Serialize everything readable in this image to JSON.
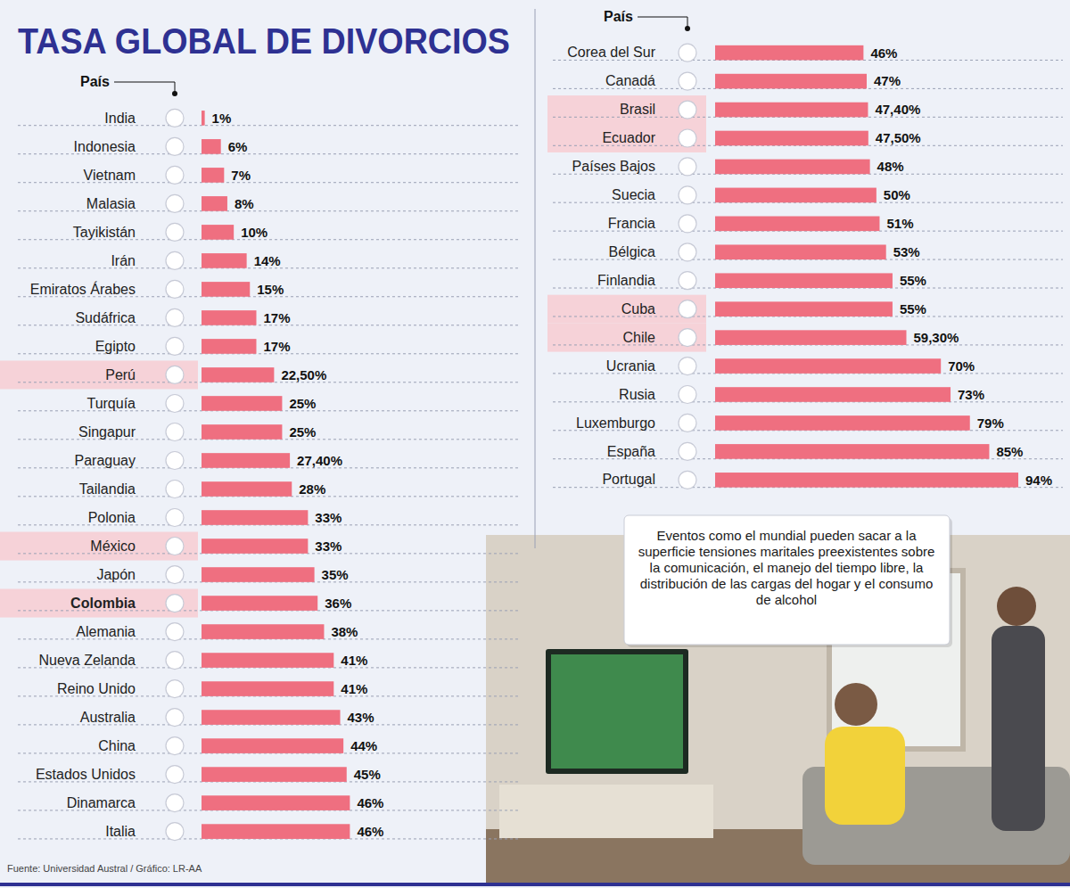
{
  "chart_data": {
    "type": "bar",
    "title": "TASA GLOBAL DE DIVORCIOS",
    "ylabel": "País",
    "orientation": "horizontal",
    "data_labels": true,
    "tick_labels": "y",
    "color": "#ef6f80",
    "categories": [
      "India",
      "Indonesia",
      "Vietnam",
      "Malasia",
      "Tayikistán",
      "Irán",
      "Emiratos Árabes",
      "Sudáfrica",
      "Egipto",
      "Perú",
      "Turquía",
      "Singapur",
      "Paraguay",
      "Tailandia",
      "Polonia",
      "México",
      "Japón",
      "Colombia",
      "Alemania",
      "Nueva Zelanda",
      "Reino Unido",
      "Australia",
      "China",
      "Estados Unidos",
      "Dinamarca",
      "Italia",
      "Corea del Sur",
      "Canadá",
      "Brasil",
      "Ecuador",
      "Países Bajos",
      "Suecia",
      "Francia",
      "Bélgica",
      "Finlandia",
      "Cuba",
      "Chile",
      "Ucrania",
      "Rusia",
      "Luxemburgo",
      "España",
      "Portugal"
    ],
    "values": [
      1,
      6,
      7,
      8,
      10,
      14,
      15,
      17,
      17,
      22.5,
      25,
      25,
      27.4,
      28,
      33,
      33,
      35,
      36,
      38,
      41,
      41,
      43,
      44,
      45,
      46,
      46,
      46,
      47,
      47.4,
      47.5,
      48,
      50,
      51,
      53,
      55,
      55,
      59.3,
      70,
      73,
      79,
      85,
      94
    ],
    "value_labels": [
      "1%",
      "6%",
      "7%",
      "8%",
      "10%",
      "14%",
      "15%",
      "17%",
      "17%",
      "22,50%",
      "25%",
      "25%",
      "27,40%",
      "28%",
      "33%",
      "33%",
      "35%",
      "36%",
      "38%",
      "41%",
      "41%",
      "43%",
      "44%",
      "45%",
      "46%",
      "46%",
      "46%",
      "47%",
      "47,40%",
      "47,50%",
      "48%",
      "50%",
      "51%",
      "53%",
      "55%",
      "55%",
      "59,30%",
      "70%",
      "73%",
      "79%",
      "85%",
      "94%"
    ],
    "annotations": [
      "Eventos como el mundial pueden sacar a la superficie tensiones maritales preexistentes sobre la comunicación, el manejo del tiempo libre, la distribución de las cargas del hogar y el consumo de alcohol",
      "Fuente: Universidad Austral / Gráfico: LR-AA"
    ]
  }
}
